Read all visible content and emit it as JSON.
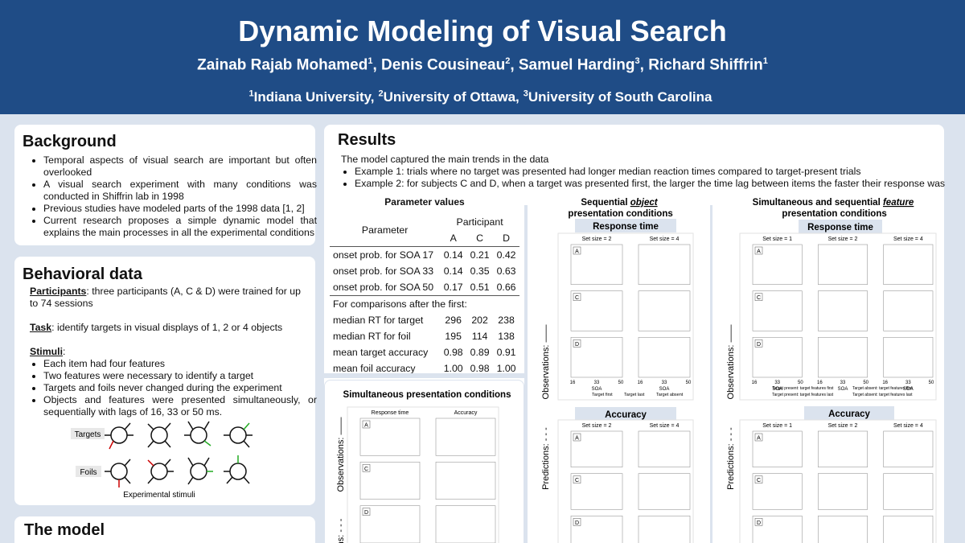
{
  "header": {
    "title": "Dynamic Modeling of Visual Search",
    "authors": [
      {
        "name": "Zainab Rajab Mohamed",
        "sup": "1"
      },
      {
        "name": ", Denis Cousineau",
        "sup": "2"
      },
      {
        "name": ", Samuel Harding",
        "sup": "3"
      },
      {
        "name": ", Richard Shiffrin",
        "sup": "1"
      }
    ],
    "affiliations": [
      {
        "sup": "1",
        "name": "Indiana University,"
      },
      {
        "sup": "2",
        "name": "University of Ottawa,"
      },
      {
        "sup": "3",
        "name": "University of South Carolina"
      }
    ]
  },
  "background": {
    "heading": "Background",
    "bullets": [
      "Temporal aspects of visual search are important but often overlooked",
      "A visual search experiment with many conditions was conducted in Shiffrin lab in 1998",
      "Previous studies have modeled parts of the 1998 data [1, 2]",
      "Current research proposes a simple dynamic model that explains the main processes in all the experimental conditions"
    ]
  },
  "behavioral": {
    "heading": "Behavioral data",
    "participants_label": "Participants",
    "participants_text": ": three participants (A, C & D) were trained for up to 74 sessions",
    "task_label": "Task",
    "task_text": ": identify targets in visual displays of 1, 2 or 4 objects",
    "stimuli_label": "Stimuli",
    "stimuli_text": ":",
    "bullets": [
      "Each item had four features",
      "Two features were necessary to identify a target",
      "Targets and foils never changed during the experiment",
      "Objects and features were presented simultaneously, or sequentially with lags of 16, 33 or 50 ms."
    ],
    "figure": {
      "targets": "Targets",
      "foils": "Foils",
      "caption": "Experimental stimuli"
    }
  },
  "model": {
    "heading": "The model"
  },
  "results": {
    "heading": "Results",
    "intro": "The model captured the main trends in the data",
    "bullets": [
      "Example 1: trials where no target was presented had longer median reaction times compared to target-present trials",
      "Example 2: for subjects C and D, when a target was presented first, the larger the time lag between items the faster their response was"
    ],
    "table": {
      "title": "Parameter values",
      "parameter": "Parameter",
      "participant": "Participant",
      "columns": [
        "A",
        "C",
        "D"
      ],
      "rows": [
        [
          "onset prob. for SOA 17",
          "0.14",
          "0.21",
          "0.42"
        ],
        [
          "onset prob. for SOA 33",
          "0.14",
          "0.35",
          "0.63"
        ],
        [
          "onset prob. for SOA 50",
          "0.17",
          "0.51",
          "0.66"
        ]
      ],
      "section": "For comparisons after the first:",
      "rows2": [
        [
          "median RT for target",
          "296",
          "202",
          "238"
        ],
        [
          "median RT for foil",
          "195",
          "114",
          "138"
        ],
        [
          "mean target accuracy",
          "0.98",
          "0.89",
          "0.91"
        ],
        [
          "mean foil accuracy",
          "1.00",
          "0.98",
          "1.00"
        ]
      ]
    },
    "simultaneous": {
      "title": "Simultaneous presentation conditions",
      "columns": [
        "Response time",
        "Accuracy"
      ],
      "rows": [
        "A",
        "C",
        "D"
      ],
      "observations": "Observations: ——",
      "predictions": "ons: - - -"
    },
    "object": {
      "title_before": "Sequential ",
      "title_emph": "object",
      "title_after": " presentation conditions",
      "rt_heading": "Response time",
      "acc_heading": "Accuracy",
      "columns": [
        "Set size = 2",
        "Set size = 4"
      ],
      "rows": [
        "A",
        "C",
        "D"
      ],
      "x_label": "SOA",
      "x_ticks": [
        "16",
        "33",
        "50"
      ],
      "legend": [
        "Target first",
        "Target last",
        "Target absent"
      ],
      "observations": "Observations: ——",
      "predictions": "Predictions: - - -"
    },
    "feature": {
      "title_before": "Simultaneous and sequential ",
      "title_emph": "feature",
      "title_after": " presentation conditions",
      "rt_heading": "Response time",
      "acc_heading": "Accuracy",
      "columns": [
        "Set size = 1",
        "Set size = 2",
        "Set size = 4"
      ],
      "rows": [
        "A",
        "C",
        "D"
      ],
      "x_label": "SOA",
      "x_ticks": [
        "16",
        "33",
        "50"
      ],
      "legend": [
        "Target present: target features first",
        "Target present: target features last",
        "Target absent: target features first",
        "Target absent: target features last"
      ],
      "observations": "Observations: ——",
      "predictions": "Predictions: - - -"
    }
  }
}
